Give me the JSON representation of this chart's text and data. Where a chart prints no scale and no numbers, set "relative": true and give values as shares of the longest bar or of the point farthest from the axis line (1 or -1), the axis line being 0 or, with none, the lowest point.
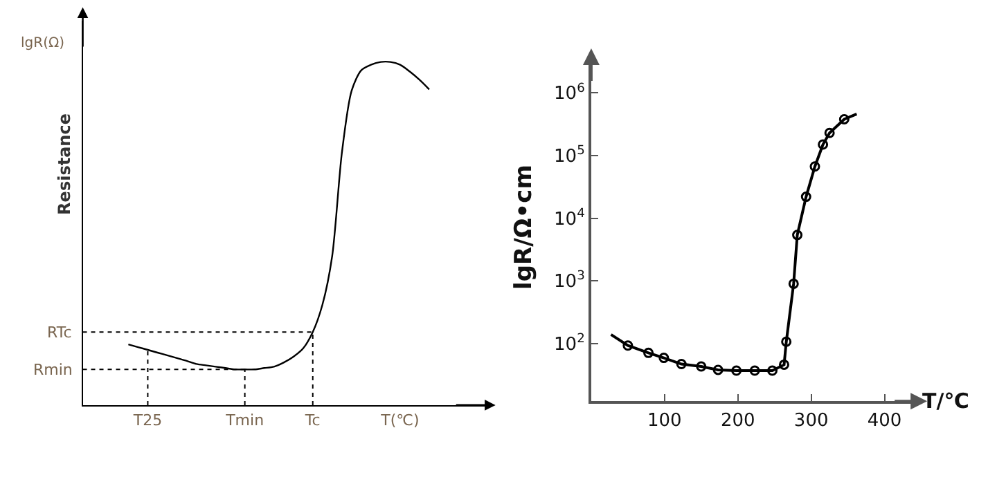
{
  "chart_data": [
    {
      "type": "line",
      "relative": true,
      "ylabel": "Resistance",
      "annotations": [
        "lgR(Ω)"
      ],
      "categories": [
        null,
        null,
        "T25",
        null,
        null,
        null,
        null,
        null,
        null,
        null,
        null,
        null,
        "Tmin",
        null,
        null,
        null,
        null,
        null,
        null,
        "Tc",
        null,
        null,
        null,
        null,
        null,
        null,
        null,
        null,
        "T(℃)",
        null,
        null,
        null
      ],
      "series": [
        {
          "color": "#000000",
          "values": [
            0.177,
            0.169,
            0.161,
            0.153,
            0.145,
            0.137,
            0.129,
            0.12,
            0.116,
            0.112,
            0.108,
            0.104,
            0.104,
            0.104,
            0.108,
            0.112,
            0.124,
            0.141,
            0.165,
            0.213,
            0.293,
            0.434,
            0.735,
            0.916,
            0.976,
            0.992,
            1,
            1,
            0.992,
            0.972,
            0.948,
            0.92
          ]
        }
      ],
      "ref_lines": [
        {
          "axis": "y",
          "value": 0.213,
          "label": "RTc",
          "line_style": "dotted"
        },
        {
          "axis": "y",
          "value": 0.104,
          "label": "Rmin",
          "line_style": "dotted"
        },
        {
          "axis": "x",
          "value": "T25",
          "line_style": "dotted"
        },
        {
          "axis": "x",
          "value": "Tmin",
          "line_style": "dotted"
        },
        {
          "axis": "x",
          "value": "Tc",
          "line_style": "dotted"
        }
      ],
      "marker": "none"
    },
    {
      "type": "line",
      "xlabel": "T/℃",
      "ylabel": "lgR/Ω•cm",
      "series": [
        {
          "color": "#000000",
          "marker": "none",
          "x": [
            27,
            50,
            78,
            99,
            123,
            150,
            173,
            198,
            223,
            247,
            263,
            266,
            276,
            281,
            293,
            305,
            316,
            325,
            345,
            362
          ],
          "values": [
            139,
            93,
            71,
            59,
            47,
            43,
            38,
            37,
            37,
            37,
            46,
            107,
            900,
            5400,
            22000,
            67000,
            150000,
            230000,
            380000,
            460000
          ]
        },
        {
          "type": "scatter",
          "color": "#000000",
          "marker": "circle",
          "x": [
            50,
            78,
            99,
            123,
            150,
            173,
            198,
            223,
            247,
            263,
            266,
            276,
            281,
            293,
            305,
            316,
            325,
            345
          ],
          "values": [
            93,
            71,
            59,
            47,
            43,
            38,
            37,
            37,
            37,
            46,
            107,
            900,
            5400,
            22000,
            67000,
            150000,
            230000,
            380000
          ]
        }
      ],
      "xlim": [
        0,
        450
      ],
      "xticks": [
        100,
        200,
        300,
        400
      ],
      "ylim": [
        12,
        4000000
      ],
      "yticks": [
        {
          "value": 100,
          "label": "10$^{2}$"
        },
        {
          "value": 1000,
          "label": "10$^{3}$"
        },
        {
          "value": 10000,
          "label": "10$^{4}$"
        },
        {
          "value": 100000,
          "label": "10$^{5}$"
        },
        {
          "value": 1000000,
          "label": "10$^{6}$"
        }
      ],
      "log": "y"
    }
  ]
}
